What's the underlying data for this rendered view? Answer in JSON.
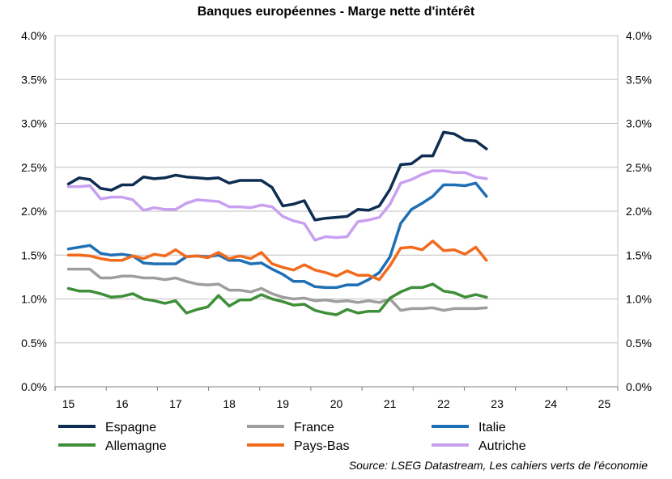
{
  "chart_data": {
    "type": "line",
    "title": "Banques européennes - Marge nette d'intérêt",
    "source": "Source: LSEG Datastream, Les cahiers verts de l'économie",
    "ylim": [
      0,
      4.0
    ],
    "yticks": [
      "0.0%",
      "0.5%",
      "1.0%",
      "1.5%",
      "2.0%",
      "2.5%",
      "3.0%",
      "3.5%",
      "4.0%"
    ],
    "ytick_values": [
      0,
      0.5,
      1.0,
      1.5,
      2.0,
      2.5,
      3.0,
      3.5,
      4.0
    ],
    "xticks": [
      "15",
      "16",
      "17",
      "18",
      "19",
      "20",
      "21",
      "22",
      "23",
      "24",
      "25"
    ],
    "xtick_values": [
      2015,
      2016,
      2017,
      2018,
      2019,
      2020,
      2021,
      2022,
      2023,
      2024,
      2025
    ],
    "xlim": [
      2014.75,
      2025.25
    ],
    "grid": "horizontal",
    "legend_position": "bottom",
    "x": [
      2015.0,
      2015.2,
      2015.4,
      2015.6,
      2015.8,
      2016.0,
      2016.2,
      2016.4,
      2016.6,
      2016.8,
      2017.0,
      2017.2,
      2017.4,
      2017.6,
      2017.8,
      2018.0,
      2018.2,
      2018.4,
      2018.6,
      2018.8,
      2019.0,
      2019.2,
      2019.4,
      2019.6,
      2019.8,
      2020.0,
      2020.2,
      2020.4,
      2020.6,
      2020.8,
      2021.0,
      2021.2,
      2021.4,
      2021.6,
      2021.8,
      2022.0,
      2022.2,
      2022.4,
      2022.6,
      2022.8,
      2023.0,
      2023.2,
      2023.4,
      2023.6,
      2023.8,
      2024.0,
      2024.2,
      2024.4,
      2024.6
    ],
    "series": [
      {
        "name": "Espagne",
        "color": "#0d2d52",
        "values": [
          2.31,
          2.38,
          2.36,
          2.26,
          2.24,
          2.3,
          2.3,
          2.39,
          2.37,
          2.38,
          2.41,
          2.39,
          2.38,
          2.37,
          2.38,
          2.32,
          2.35,
          2.35,
          2.35,
          2.27,
          2.06,
          2.08,
          2.12,
          1.9,
          1.92,
          1.93,
          1.94,
          2.02,
          2.01,
          2.06,
          2.25,
          2.53,
          2.54,
          2.63,
          2.63,
          2.9,
          2.88,
          2.81,
          2.8,
          2.71,
          null,
          null,
          null,
          null,
          null,
          null,
          null,
          null,
          null
        ]
      },
      {
        "name": "France",
        "color": "#9e9e9e",
        "values": [
          1.34,
          1.34,
          1.34,
          1.24,
          1.24,
          1.26,
          1.26,
          1.24,
          1.24,
          1.22,
          1.24,
          1.2,
          1.17,
          1.16,
          1.17,
          1.1,
          1.1,
          1.08,
          1.12,
          1.06,
          1.02,
          1.0,
          1.01,
          0.98,
          0.99,
          0.97,
          0.98,
          0.96,
          0.98,
          0.96,
          1.0,
          0.87,
          0.89,
          0.89,
          0.9,
          0.87,
          0.89,
          0.89,
          0.89,
          0.9,
          null,
          null,
          null,
          null,
          null,
          null,
          null,
          null,
          null
        ]
      },
      {
        "name": "Italie",
        "color": "#1f6fb5",
        "values": [
          1.57,
          1.59,
          1.61,
          1.52,
          1.5,
          1.51,
          1.49,
          1.41,
          1.4,
          1.4,
          1.4,
          1.48,
          1.49,
          1.48,
          1.5,
          1.44,
          1.44,
          1.4,
          1.41,
          1.34,
          1.28,
          1.2,
          1.2,
          1.14,
          1.13,
          1.13,
          1.16,
          1.16,
          1.22,
          1.3,
          1.48,
          1.86,
          2.02,
          2.09,
          2.17,
          2.3,
          2.3,
          2.29,
          2.32,
          2.17,
          null,
          null,
          null,
          null,
          null,
          null,
          null,
          null,
          null
        ]
      },
      {
        "name": "Allemagne",
        "color": "#3f8f3a",
        "values": [
          1.12,
          1.09,
          1.09,
          1.06,
          1.02,
          1.03,
          1.06,
          1.0,
          0.98,
          0.95,
          0.98,
          0.84,
          0.88,
          0.91,
          1.04,
          0.92,
          0.99,
          0.99,
          1.05,
          1.0,
          0.97,
          0.93,
          0.94,
          0.87,
          0.84,
          0.82,
          0.88,
          0.84,
          0.86,
          0.86,
          1.01,
          1.08,
          1.13,
          1.13,
          1.17,
          1.09,
          1.07,
          1.02,
          1.05,
          1.02,
          null,
          null,
          null,
          null,
          null,
          null,
          null,
          null,
          null
        ]
      },
      {
        "name": "Pays-Bas",
        "color": "#f26b1d",
        "values": [
          1.5,
          1.5,
          1.49,
          1.46,
          1.44,
          1.44,
          1.49,
          1.46,
          1.51,
          1.49,
          1.56,
          1.48,
          1.49,
          1.47,
          1.53,
          1.46,
          1.49,
          1.46,
          1.53,
          1.4,
          1.36,
          1.33,
          1.39,
          1.33,
          1.3,
          1.26,
          1.32,
          1.27,
          1.27,
          1.22,
          1.38,
          1.58,
          1.59,
          1.56,
          1.66,
          1.55,
          1.56,
          1.51,
          1.59,
          1.44,
          null,
          null,
          null,
          null,
          null,
          null,
          null,
          null,
          null
        ]
      },
      {
        "name": "Autriche",
        "color": "#c9a0f0",
        "values": [
          2.28,
          2.28,
          2.29,
          2.14,
          2.16,
          2.16,
          2.13,
          2.01,
          2.04,
          2.02,
          2.02,
          2.09,
          2.13,
          2.12,
          2.11,
          2.05,
          2.05,
          2.04,
          2.07,
          2.05,
          1.94,
          1.89,
          1.86,
          1.67,
          1.71,
          1.7,
          1.71,
          1.88,
          1.9,
          1.93,
          2.08,
          2.32,
          2.36,
          2.42,
          2.46,
          2.46,
          2.44,
          2.44,
          2.39,
          2.37,
          null,
          null,
          null,
          null,
          null,
          null,
          null,
          null,
          null
        ]
      }
    ]
  }
}
